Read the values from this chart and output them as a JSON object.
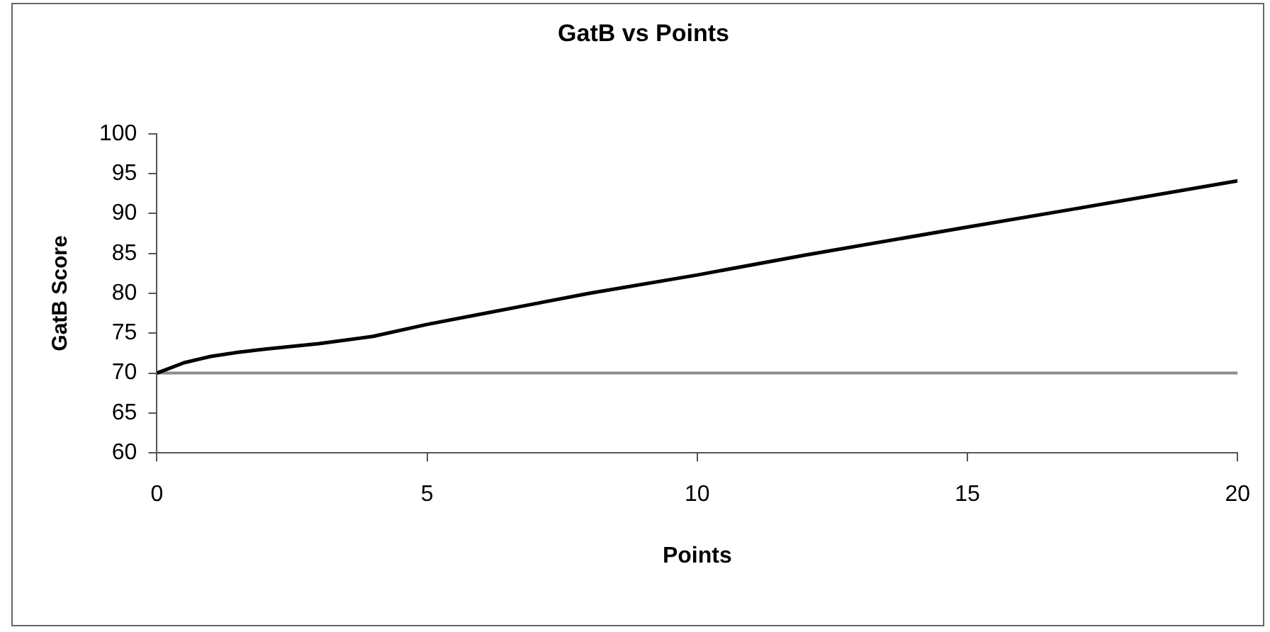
{
  "chart_data": {
    "type": "line",
    "title": "GatB vs Points",
    "xlabel": "Points",
    "ylabel": "GatB Score",
    "xlim": [
      0,
      20
    ],
    "xticks": [
      0,
      5,
      10,
      15,
      20
    ],
    "ylim": [
      60,
      100
    ],
    "yticks": [
      60,
      65,
      70,
      75,
      80,
      85,
      90,
      95,
      100
    ],
    "grid": false,
    "legend": false,
    "marker": "none",
    "line_style": "solid",
    "series": [
      {
        "color": "#000000",
        "x": [
          0,
          0.5,
          1,
          1.5,
          2,
          3,
          4,
          5,
          6,
          7,
          8,
          10,
          12,
          15,
          17,
          20
        ],
        "values": [
          70,
          71.3,
          72.1,
          72.6,
          73,
          73.7,
          74.6,
          76.1,
          77.4,
          78.7,
          80,
          82.3,
          84.8,
          88.3,
          90.6,
          94.1
        ]
      }
    ],
    "ref_lines": [
      {
        "axis": "y",
        "value": 70,
        "color": "#8c8c8c"
      }
    ]
  }
}
